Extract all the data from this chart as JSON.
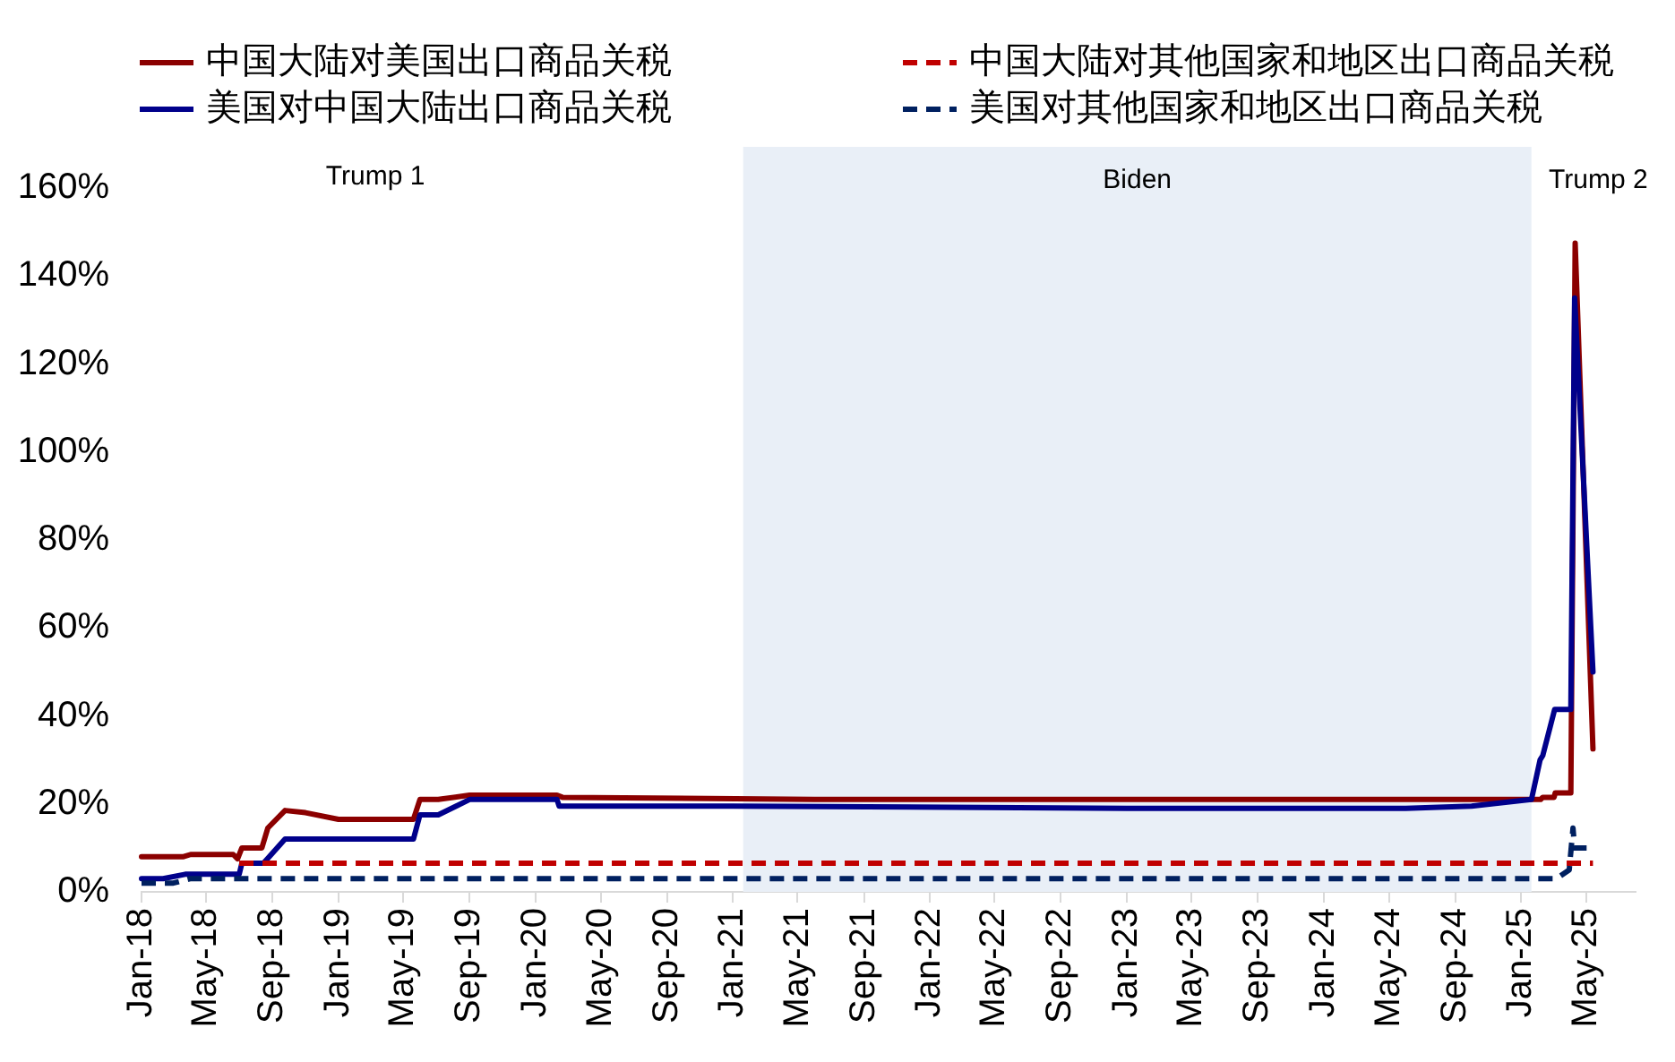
{
  "chart_data": {
    "type": "line",
    "series": [
      {
        "name": "中国大陆对美国出口商品关税",
        "color": "#8b0000",
        "line_style": "solid",
        "x": [
          "2018-01-01",
          "2018-03-20",
          "2018-04-02",
          "2018-06-20",
          "2018-06-28",
          "2018-07-06",
          "2018-08-12",
          "2018-08-23",
          "2018-09-24",
          "2018-11-01",
          "2019-01-01",
          "2019-05-20",
          "2019-06-01",
          "2019-07-05",
          "2019-09-01",
          "2020-02-10",
          "2020-02-20",
          "2021-06-01",
          "2025-02-06",
          "2025-02-10",
          "2025-03-03",
          "2025-03-05",
          "2025-04-03",
          "2025-04-11",
          "2025-05-14"
        ],
        "values": [
          8,
          8,
          8.5,
          8.5,
          7.5,
          10,
          10,
          14.5,
          18.5,
          18,
          16.5,
          16.5,
          21,
          21,
          22,
          22,
          21.5,
          21,
          21,
          21.5,
          21.5,
          22.5,
          22.5,
          147.5,
          32.5
        ]
      },
      {
        "name": "美国对中国大陆出口商品关税",
        "color": "#00008b",
        "line_style": "solid",
        "x": [
          "2018-01-01",
          "2018-02-10",
          "2018-03-23",
          "2018-07-01",
          "2018-07-06",
          "2018-08-15",
          "2018-09-24",
          "2019-05-20",
          "2019-06-01",
          "2019-07-05",
          "2019-09-01",
          "2020-02-10",
          "2020-02-14",
          "2021-01-01",
          "2023-01-01",
          "2024-06-01",
          "2024-10-01",
          "2025-01-20",
          "2025-02-05",
          "2025-02-10",
          "2025-03-04",
          "2025-04-03",
          "2025-04-10",
          "2025-05-14"
        ],
        "values": [
          3,
          3,
          4,
          4,
          6.5,
          6.5,
          12,
          12,
          17.5,
          17.5,
          21,
          21,
          19.5,
          19.5,
          19,
          19,
          19.5,
          21,
          30,
          31,
          41.5,
          41.5,
          135,
          50
        ]
      },
      {
        "name": "中国大陆对其他国家和地区出口商品关税",
        "color": "#c00000",
        "line_style": "dashed",
        "x": [
          "2018-07-01",
          "2025-05-14"
        ],
        "values": [
          6.5,
          6.5
        ]
      },
      {
        "name": "美国对其他国家和地区出口商品关税",
        "color": "#002060",
        "line_style": "dashed",
        "x": [
          "2018-01-01",
          "2018-03-01",
          "2018-04-01",
          "2025-03-07",
          "2025-03-31",
          "2025-04-07",
          "2025-04-10",
          "2025-05-14"
        ],
        "values": [
          2,
          2,
          3,
          3,
          5,
          14.5,
          10,
          10
        ]
      }
    ],
    "xlim": [
      "2018-01",
      "2025-08"
    ],
    "xticks": [
      {
        "value": "2018-01",
        "label": "Jan-18"
      },
      {
        "value": "2018-05",
        "label": "May-18"
      },
      {
        "value": "2018-09",
        "label": "Sep-18"
      },
      {
        "value": "2019-01",
        "label": "Jan-19"
      },
      {
        "value": "2019-05",
        "label": "May-19"
      },
      {
        "value": "2019-09",
        "label": "Sep-19"
      },
      {
        "value": "2020-01",
        "label": "Jan-20"
      },
      {
        "value": "2020-05",
        "label": "May-20"
      },
      {
        "value": "2020-09",
        "label": "Sep-20"
      },
      {
        "value": "2021-01",
        "label": "Jan-21"
      },
      {
        "value": "2021-05",
        "label": "May-21"
      },
      {
        "value": "2021-09",
        "label": "Sep-21"
      },
      {
        "value": "2022-01",
        "label": "Jan-22"
      },
      {
        "value": "2022-05",
        "label": "May-22"
      },
      {
        "value": "2022-09",
        "label": "Sep-22"
      },
      {
        "value": "2023-01",
        "label": "Jan-23"
      },
      {
        "value": "2023-05",
        "label": "May-23"
      },
      {
        "value": "2023-09",
        "label": "Sep-23"
      },
      {
        "value": "2024-01",
        "label": "Jan-24"
      },
      {
        "value": "2024-05",
        "label": "May-24"
      },
      {
        "value": "2024-09",
        "label": "Sep-24"
      },
      {
        "value": "2025-01",
        "label": "Jan-25"
      },
      {
        "value": "2025-05",
        "label": "May-25"
      }
    ],
    "ylim": [
      0,
      160
    ],
    "yticks": [
      {
        "value": 0,
        "label": "0%"
      },
      {
        "value": 20,
        "label": "20%"
      },
      {
        "value": 40,
        "label": "40%"
      },
      {
        "value": 60,
        "label": "60%"
      },
      {
        "value": 80,
        "label": "80%"
      },
      {
        "value": 100,
        "label": "100%"
      },
      {
        "value": 120,
        "label": "120%"
      },
      {
        "value": 140,
        "label": "140%"
      },
      {
        "value": 160,
        "label": "160%"
      }
    ],
    "legend": "top",
    "bands": [
      {
        "axis": "x",
        "from": "2021-01-20",
        "to": "2025-01-20",
        "label": "Biden",
        "color": "#e9eff7"
      }
    ],
    "annotations": [
      "Trump 1",
      "Trump 2"
    ]
  }
}
